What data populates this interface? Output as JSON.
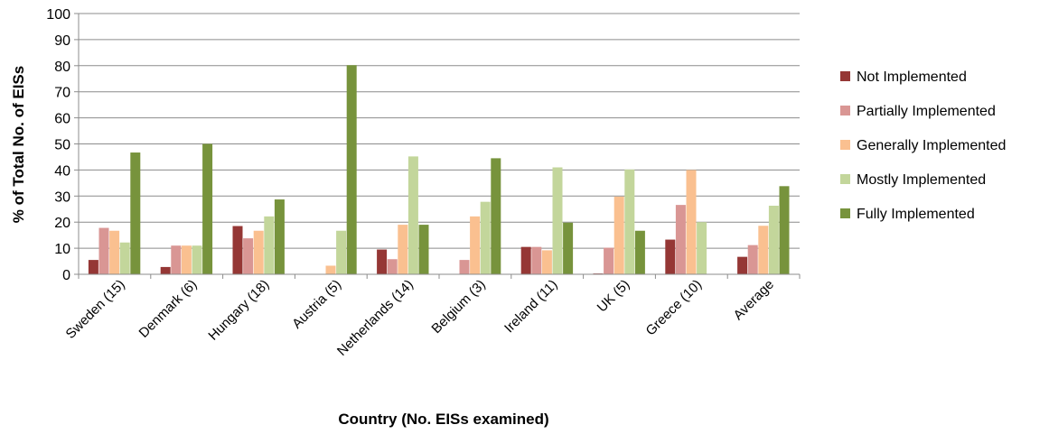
{
  "chart_data": {
    "type": "bar",
    "title": "",
    "xlabel": "Country (No. EISs examined)",
    "ylabel": "% of Total No. of EISs",
    "ylim": [
      0,
      100
    ],
    "yticks": [
      0,
      10,
      20,
      30,
      40,
      50,
      60,
      70,
      80,
      90,
      100
    ],
    "grid": true,
    "legend_position": "right",
    "categories": [
      "Sweden (15)",
      "Denmark (6)",
      "Hungary (18)",
      "Austria (5)",
      "Netherlands (14)",
      "Belgium (3)",
      "Ireland (11)",
      "UK (5)",
      "Greece (10)",
      "Average"
    ],
    "series": [
      {
        "name": "Not Implemented",
        "color": "#953735",
        "values": [
          5.5,
          2.8,
          18.5,
          0,
          9.5,
          0,
          10.5,
          0.3,
          13.3,
          6.7
        ]
      },
      {
        "name": "Partially Implemented",
        "color": "#d99694",
        "values": [
          17.8,
          11,
          13.8,
          0,
          5.8,
          5.5,
          10.5,
          10.2,
          26.6,
          11.2
        ]
      },
      {
        "name": "Generally Implemented",
        "color": "#fac090",
        "values": [
          16.7,
          11,
          16.7,
          3.3,
          19,
          22.2,
          9.2,
          29.8,
          40,
          18.6
        ]
      },
      {
        "name": "Mostly Implemented",
        "color": "#c3d69b",
        "values": [
          12.2,
          11,
          22.2,
          16.7,
          45.2,
          27.8,
          41,
          40.2,
          20,
          26.3
        ]
      },
      {
        "name": "Fully Implemented",
        "color": "#77933c",
        "values": [
          46.7,
          50,
          28.7,
          80.2,
          19,
          44.5,
          19.8,
          16.7,
          0,
          33.8
        ]
      }
    ]
  }
}
